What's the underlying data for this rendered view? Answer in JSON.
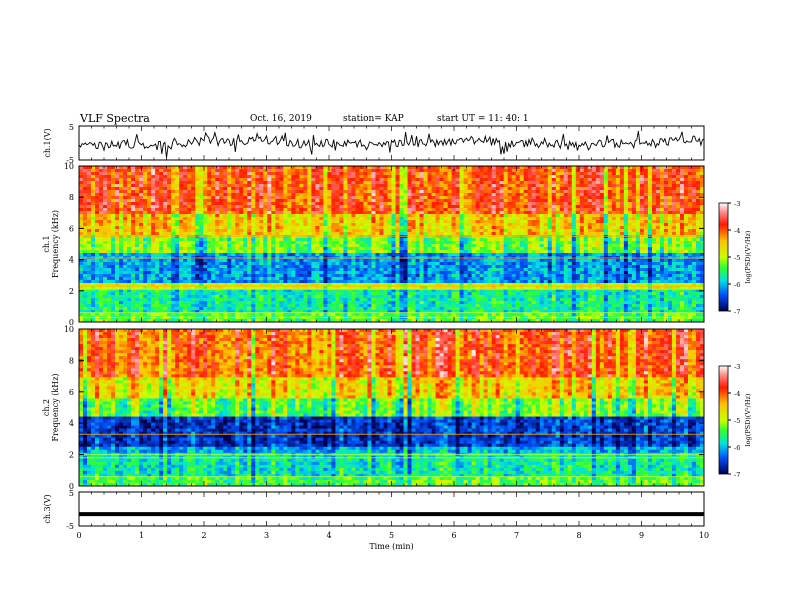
{
  "header": {
    "title": "VLF Spectra",
    "date": "Oct. 16, 2019",
    "station": "station= KAP",
    "start_ut": "start  UT =   11: 40: 1"
  },
  "chart_data": [
    {
      "type": "line",
      "panel": "ch1-waveform",
      "ylabel": "ch.1(V)",
      "ylim": [
        -5,
        5
      ],
      "yticks": [
        "5",
        "-5"
      ],
      "xlim": [
        0,
        10
      ],
      "series": [
        {
          "values_description_only": false
        }
      ],
      "color": "#000000"
    },
    {
      "type": "heatmap",
      "panel": "ch1-spectrogram",
      "ylabel_top": "ch.1",
      "ylabel": "Frequency  (kHz)",
      "ylim": [
        0,
        10
      ],
      "yticks": [
        "0",
        "2",
        "4",
        "6",
        "8",
        "10"
      ],
      "xlim": [
        0,
        10
      ],
      "colorbar": {
        "label": "log(PSD)(V²/Hz)",
        "range": [
          -7,
          -3
        ],
        "ticks": [
          "-3",
          "-4",
          "-5",
          "-6",
          "-7"
        ]
      }
    },
    {
      "type": "heatmap",
      "panel": "ch2-spectrogram",
      "ylabel_top": "ch.2",
      "ylabel": "Frequency  (kHz)",
      "ylim": [
        0,
        10
      ],
      "yticks": [
        "0",
        "2",
        "4",
        "6",
        "8",
        "10"
      ],
      "xlim": [
        0,
        10
      ],
      "colorbar": {
        "label": "log(PSD)(V²/Hz)",
        "range": [
          -7,
          -3
        ],
        "ticks": [
          "-3",
          "-4",
          "-5",
          "-6",
          "-7"
        ]
      }
    },
    {
      "type": "line",
      "panel": "ch3-waveform",
      "ylabel": "ch.3(V)",
      "ylim": [
        -5,
        5
      ],
      "yticks": [
        "5",
        "-5"
      ],
      "xlim": [
        0,
        10
      ],
      "level": -1.5,
      "color": "#000000"
    }
  ],
  "xaxis": {
    "label": "Time  (min)",
    "ticks": [
      "0",
      "1",
      "2",
      "3",
      "4",
      "5",
      "6",
      "7",
      "8",
      "9",
      "10"
    ]
  },
  "colors": {
    "ink": "#000000"
  }
}
